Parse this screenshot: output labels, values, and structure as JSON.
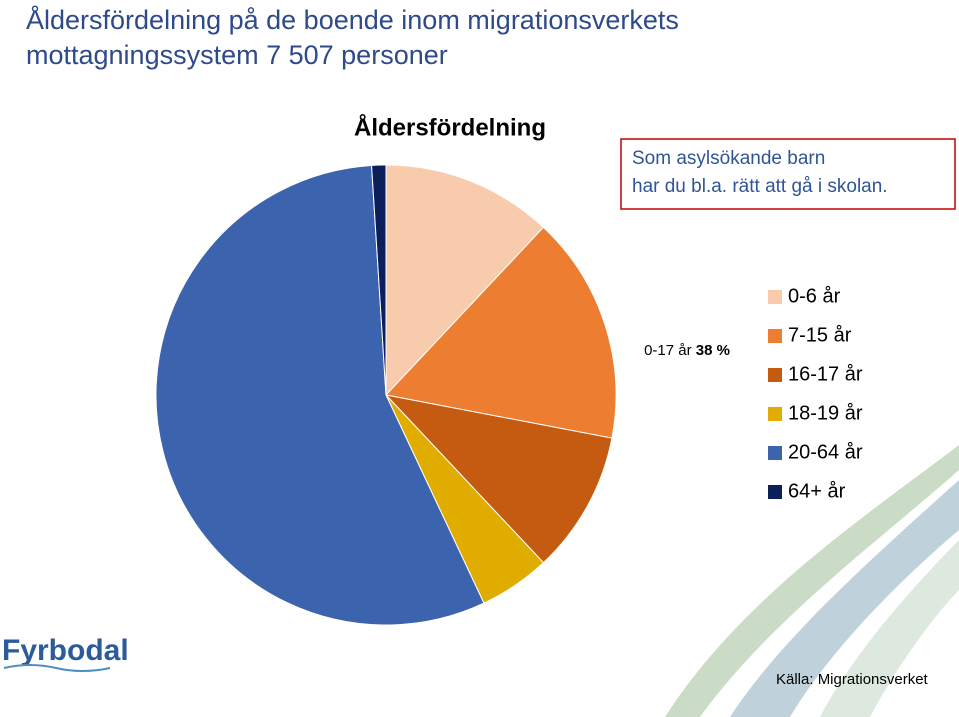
{
  "slide_title": [
    "Åldersfördelning på de boende inom migrationsverkets",
    "mottagningssystem 7 507 personer"
  ],
  "chart_data": {
    "type": "pie",
    "title": "Åldersfördelning",
    "categories": [
      "0-6 år",
      "7-15 år",
      "16-17 år",
      "18-19 år",
      "20-64 år",
      "64+ år"
    ],
    "values": [
      12,
      16,
      10,
      5,
      56,
      1
    ],
    "colors": [
      "#f8cbad",
      "#ed7d31",
      "#c55a11",
      "#e0ac00",
      "#3c63ad",
      "#0b1f5c"
    ],
    "legend": "right",
    "annotation": {
      "text": "0-17 år",
      "value_text": "38 %"
    }
  },
  "callout": [
    "Som asylsökande barn",
    "har du bl.a. rätt att gå i skolan."
  ],
  "logo": "Fyrbodal",
  "source": "Källa: Migrationsverket"
}
